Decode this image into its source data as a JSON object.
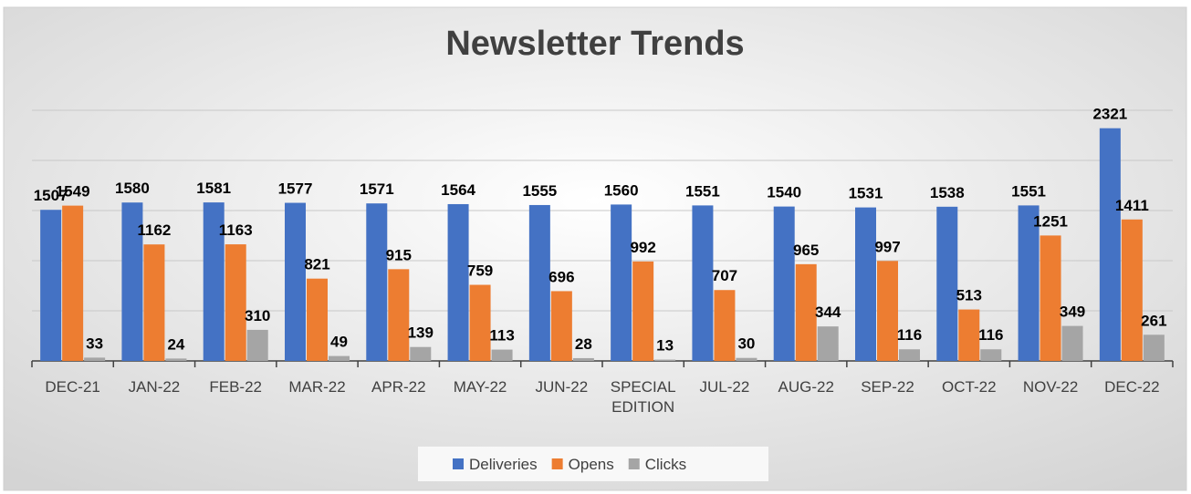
{
  "chart_data": {
    "type": "bar",
    "title": "Newsletter Trends",
    "categories": [
      "DEC-21",
      "JAN-22",
      "FEB-22",
      "MAR-22",
      "APR-22",
      "MAY-22",
      "JUN-22",
      "SPECIAL EDITION",
      "JUL-22",
      "AUG-22",
      "SEP-22",
      "OCT-22",
      "NOV-22",
      "DEC-22"
    ],
    "series": [
      {
        "name": "Deliveries",
        "color": "#4472c4",
        "values": [
          1507,
          1580,
          1581,
          1577,
          1571,
          1564,
          1555,
          1560,
          1551,
          1540,
          1531,
          1538,
          1551,
          2321
        ]
      },
      {
        "name": "Opens",
        "color": "#ed7d31",
        "values": [
          1549,
          1162,
          1163,
          821,
          915,
          759,
          696,
          992,
          707,
          965,
          997,
          513,
          1251,
          1411
        ]
      },
      {
        "name": "Clicks",
        "color": "#a5a5a5",
        "values": [
          33,
          24,
          310,
          49,
          139,
          113,
          28,
          13,
          30,
          344,
          116,
          116,
          349,
          261
        ]
      }
    ],
    "ylim": [
      0,
      2500
    ],
    "yticks": [
      0,
      500,
      1000,
      1500,
      2000,
      2500
    ],
    "grid": true,
    "legend": "bottom"
  }
}
